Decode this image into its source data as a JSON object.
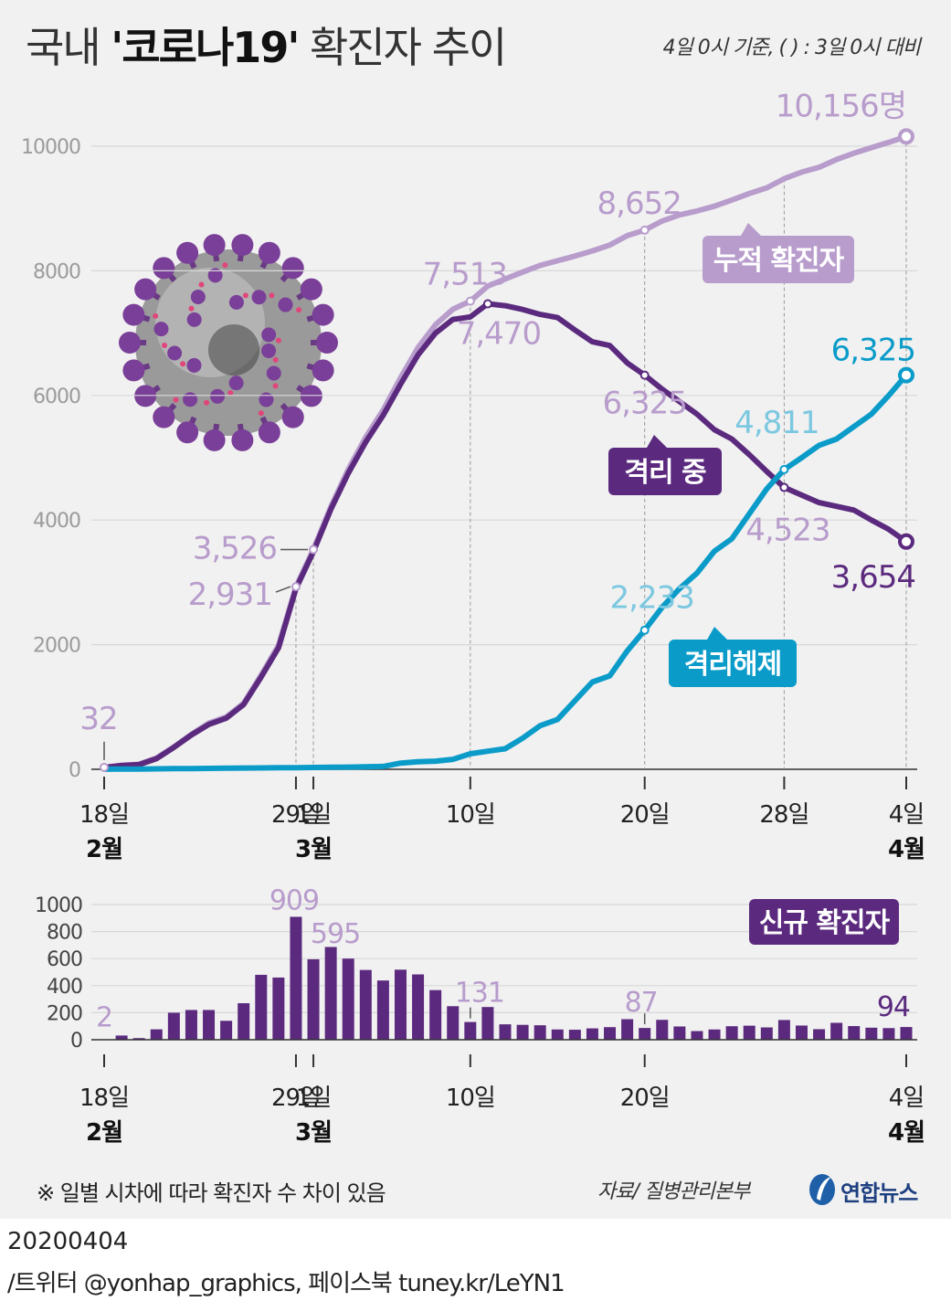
{
  "header": {
    "title_prefix": "국내 ",
    "title_bold": "'코로나19'",
    "title_suffix": " 확진자 추이",
    "baseline_note": "4일 0시 기준, ( ) : 3일 0시 대비"
  },
  "footer": {
    "footnote": "※ 일별 시차에 따라 확진자 수 차이 있음",
    "source": "자료/ 질병관리본부",
    "logo_text": "연합뉴스",
    "date": "20200404",
    "credit": "/트위터 @yonhap_graphics, 페이스북 tuney.kr/LeYN1"
  },
  "colors": {
    "cumulative": "#b89ccc",
    "isolated": "#5b2a7e",
    "released": "#0a9bc9",
    "new_bar": "#5b2a7e",
    "released_label": "#7cc8e0"
  },
  "chart_data": [
    {
      "type": "line",
      "ylim": [
        0,
        10000
      ],
      "yticks": [
        0,
        2000,
        4000,
        6000,
        8000,
        10000
      ],
      "xticks": [
        {
          "x": 0,
          "day": "18일",
          "month": "2월"
        },
        {
          "x": 11,
          "day": "29일",
          "month": ""
        },
        {
          "x": 12,
          "day": "1일",
          "month": "3월"
        },
        {
          "x": 21,
          "day": "10일",
          "month": ""
        },
        {
          "x": 31,
          "day": "20일",
          "month": ""
        },
        {
          "x": 39,
          "day": "28일",
          "month": ""
        },
        {
          "x": 46,
          "day": "4일",
          "month": "4월"
        }
      ],
      "series": [
        {
          "name": "누적 확진자",
          "values": [
            32,
            65,
            80,
            180,
            360,
            560,
            740,
            840,
            1060,
            1510,
            1990,
            2931,
            3526,
            4212,
            4812,
            5328,
            5766,
            6284,
            6767,
            7134,
            7382,
            7513,
            7755,
            7869,
            7979,
            8086,
            8162,
            8236,
            8320,
            8413,
            8565,
            8652,
            8799,
            8897,
            8961,
            9037,
            9137,
            9241,
            9332,
            9478,
            9583,
            9661,
            9786,
            9887,
            9976,
            10062,
            10156
          ]
        },
        {
          "name": "격리 중",
          "values": [
            30,
            60,
            75,
            170,
            350,
            550,
            720,
            820,
            1040,
            1480,
            1950,
            2900,
            3490,
            4170,
            4750,
            5250,
            5680,
            6180,
            6650,
            7000,
            7220,
            7260,
            7470,
            7440,
            7380,
            7300,
            7250,
            7050,
            6860,
            6800,
            6520,
            6325,
            6100,
            5900,
            5700,
            5450,
            5300,
            5050,
            4780,
            4523,
            4400,
            4280,
            4220,
            4160,
            4000,
            3850,
            3654
          ]
        },
        {
          "name": "격리해제",
          "values": [
            2,
            5,
            5,
            8,
            10,
            12,
            15,
            18,
            20,
            22,
            25,
            27,
            30,
            32,
            35,
            40,
            45,
            100,
            120,
            130,
            160,
            250,
            290,
            330,
            500,
            700,
            800,
            1100,
            1400,
            1500,
            1900,
            2233,
            2600,
            2900,
            3150,
            3500,
            3700,
            4100,
            4500,
            4811,
            5000,
            5200,
            5300,
            5500,
            5700,
            6000,
            6325
          ]
        }
      ],
      "annotations": {
        "cumulative": [
          {
            "x": 0,
            "label": "32"
          },
          {
            "x": 12,
            "label": "3,526"
          },
          {
            "x": 11,
            "label": "2,931"
          },
          {
            "x": 21,
            "label": "7,513"
          },
          {
            "x": 31,
            "label": "8,652"
          },
          {
            "x": 46,
            "label": "10,156명"
          }
        ],
        "isolated": [
          {
            "x": 22,
            "label": "7,470"
          },
          {
            "x": 31,
            "label": "6,325"
          },
          {
            "x": 39,
            "label": "4,523"
          },
          {
            "x": 46,
            "label": "3,654"
          }
        ],
        "released": [
          {
            "x": 31,
            "label": "2,233"
          },
          {
            "x": 39,
            "label": "4,811"
          },
          {
            "x": 46,
            "label": "6,325"
          }
        ]
      },
      "series_labels": {
        "cumulative": "누적 확진자",
        "isolated": "격리 중",
        "released": "격리해제"
      }
    },
    {
      "type": "bar",
      "title": "신규 확진자",
      "ylim": [
        0,
        1000
      ],
      "yticks": [
        0,
        200,
        400,
        600,
        800,
        1000
      ],
      "xticks": [
        {
          "x": 0,
          "day": "18일",
          "month": "2월"
        },
        {
          "x": 11,
          "day": "29일",
          "month": ""
        },
        {
          "x": 12,
          "day": "1일",
          "month": "3월"
        },
        {
          "x": 21,
          "day": "10일",
          "month": ""
        },
        {
          "x": 31,
          "day": "20일",
          "month": ""
        },
        {
          "x": 46,
          "day": "4일",
          "month": "4월"
        }
      ],
      "values": [
        2,
        31,
        12,
        77,
        200,
        220,
        220,
        140,
        270,
        480,
        460,
        909,
        595,
        686,
        600,
        516,
        438,
        518,
        483,
        367,
        248,
        131,
        242,
        114,
        110,
        107,
        76,
        74,
        84,
        93,
        152,
        87,
        147,
        98,
        64,
        76,
        100,
        104,
        91,
        146,
        105,
        78,
        125,
        101,
        89,
        86,
        94
      ],
      "annotations": [
        {
          "x": 0,
          "label": "2"
        },
        {
          "x": 11,
          "label": "909"
        },
        {
          "x": 12,
          "label": "595"
        },
        {
          "x": 21,
          "label": "131"
        },
        {
          "x": 31,
          "label": "87"
        },
        {
          "x": 46,
          "label": "94"
        }
      ]
    }
  ]
}
